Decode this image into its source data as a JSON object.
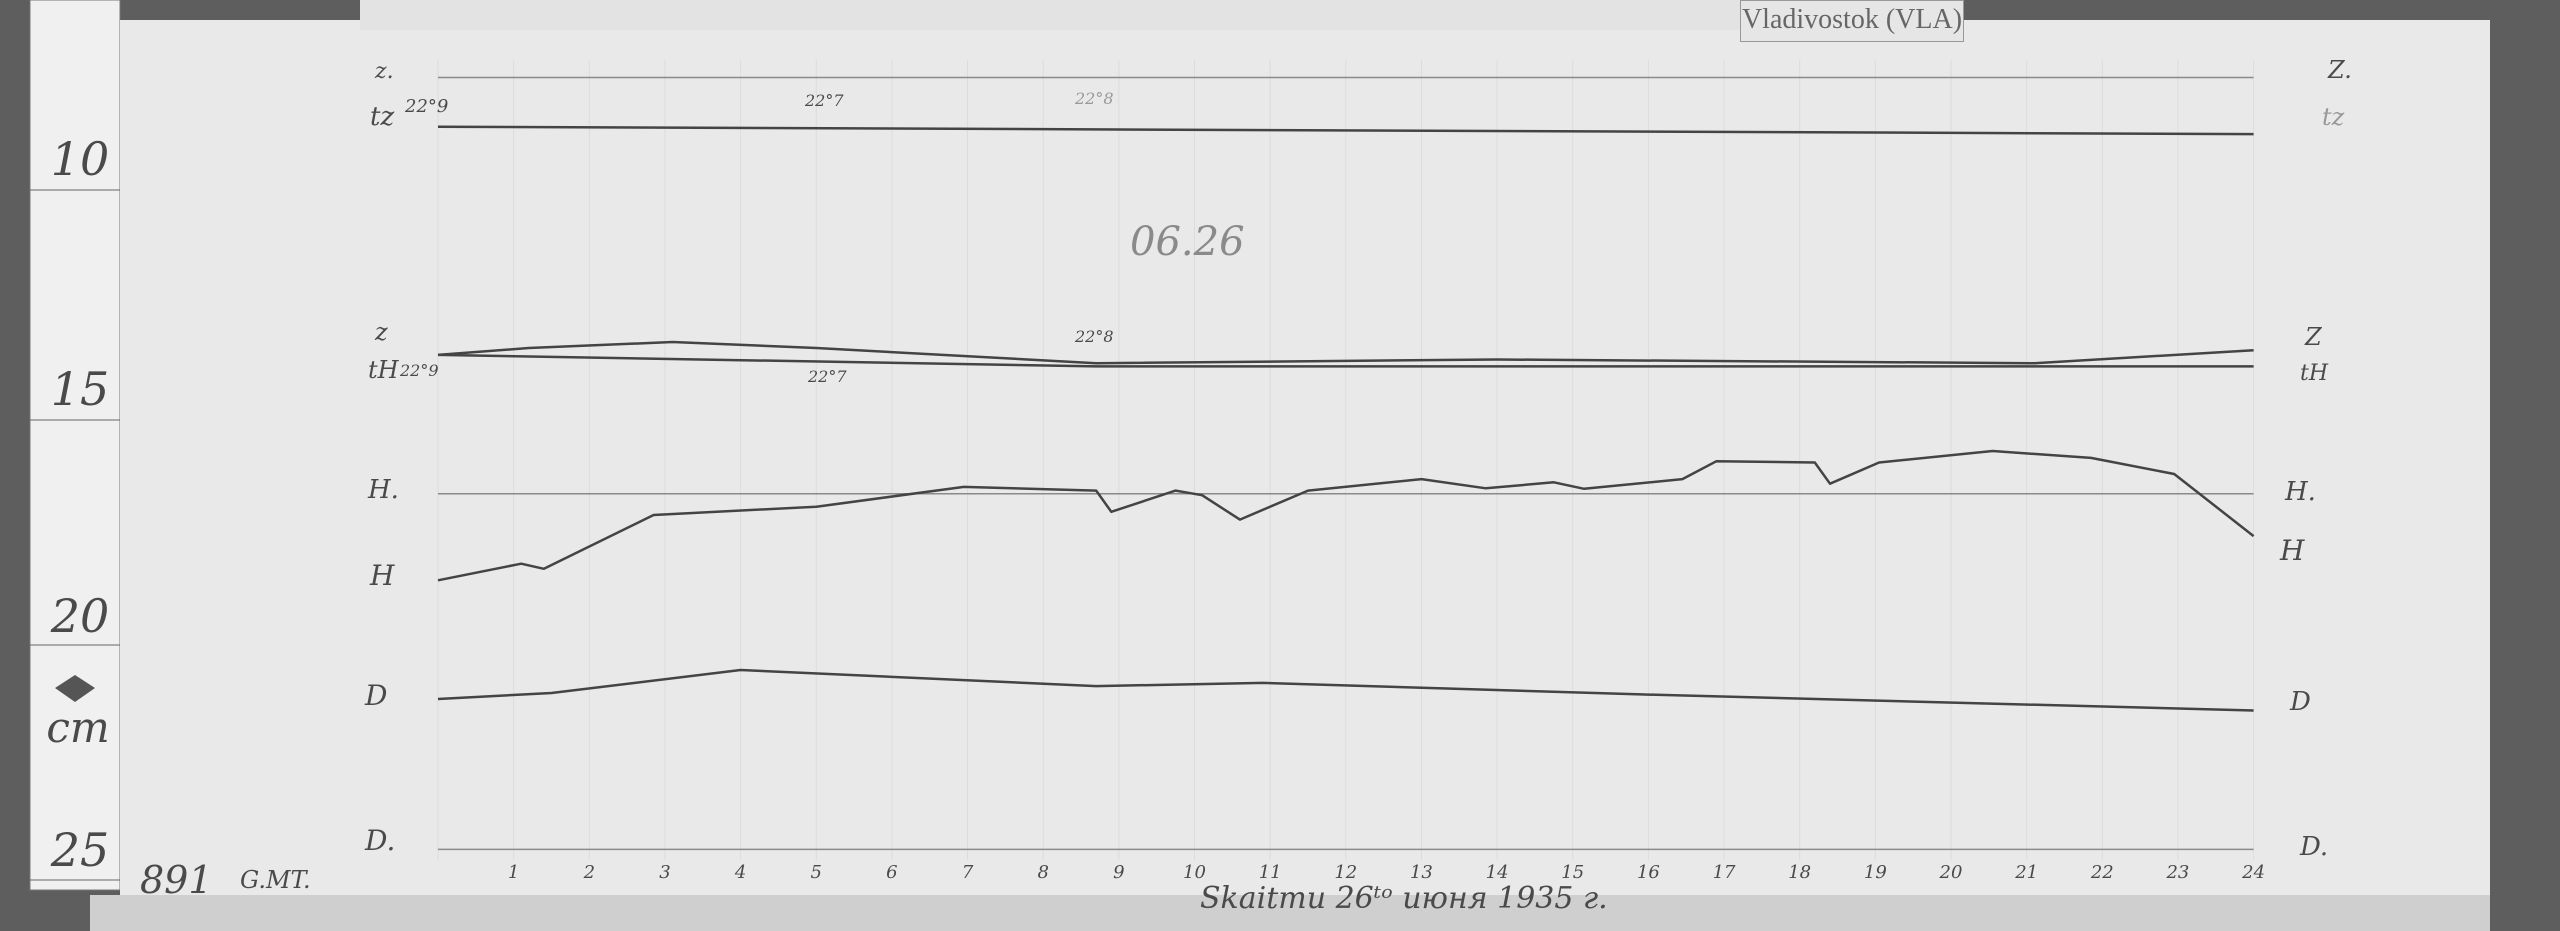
{
  "station_tag": "Vladivostok (VLA)",
  "ruler": {
    "labels": [
      "10",
      "15",
      "20",
      "25"
    ],
    "unit": "cm"
  },
  "sheet_number": "891",
  "time_reference": "G.MT.",
  "date_caption": "Skaitmu 26ᵗᵒ июня 1935 г.",
  "pencil_note": "06.26",
  "left_labels": {
    "z0": "z.",
    "tz": "tz",
    "tz_value": "22°9",
    "z": "z",
    "th": "tH",
    "th_value": "22°9",
    "h0": "H.",
    "h": "H",
    "d": "D",
    "d0": "D."
  },
  "right_labels": {
    "z0": "Z.",
    "tz": "tz",
    "z": "Z",
    "th": "tH",
    "h0": "H.",
    "h": "H",
    "d": "D",
    "d0": "D."
  },
  "annotations": {
    "tz_mid": "22°7",
    "tz_center": "22°8",
    "z_center": "22°8",
    "th_mid": "22°7"
  },
  "colors": {
    "paper": "#e9e9e9",
    "trace": "#444444",
    "background": "#5e5e5e"
  },
  "chart_data": {
    "type": "line",
    "title": "",
    "xlabel": "G.MT.",
    "ylabel": "cm",
    "x_ticks": [
      "1",
      "2",
      "3",
      "4",
      "5",
      "6",
      "7",
      "8",
      "9",
      "10",
      "11",
      "12",
      "13",
      "14",
      "15",
      "16",
      "17",
      "18",
      "19",
      "20",
      "21",
      "22",
      "23",
      "24"
    ],
    "xlim": [
      0,
      24
    ],
    "ylim": [
      7,
      25
    ],
    "grid": true,
    "series": [
      {
        "name": "Z.",
        "x": [
          0,
          24
        ],
        "y": [
          7.62,
          7.62
        ]
      },
      {
        "name": "tz",
        "x": [
          0,
          24
        ],
        "y": [
          8.69,
          8.85
        ]
      },
      {
        "name": "Z",
        "x": [
          0,
          1.2,
          3.1,
          5.0,
          8.7,
          14.0,
          21.1,
          24
        ],
        "y": [
          13.65,
          13.5,
          13.37,
          13.5,
          13.83,
          13.75,
          13.83,
          13.55
        ]
      },
      {
        "name": "tH",
        "x": [
          0,
          8.7,
          24
        ],
        "y": [
          13.65,
          13.9,
          13.9
        ]
      },
      {
        "name": "H.",
        "x": [
          0,
          24
        ],
        "y": [
          16.67,
          16.67
        ]
      },
      {
        "name": "H",
        "x": [
          0,
          1.1,
          1.4,
          2.85,
          5.0,
          6.95,
          8.7,
          8.9,
          9.75,
          10.1,
          10.6,
          11.5,
          13.0,
          13.85,
          14.75,
          15.15,
          16.45,
          16.9,
          18.2,
          18.4,
          19.05,
          20.55,
          21.85,
          22.95,
          24
        ],
        "y": [
          18.55,
          18.19,
          18.3,
          17.13,
          16.95,
          16.52,
          16.6,
          17.06,
          16.6,
          16.7,
          17.23,
          16.6,
          16.35,
          16.55,
          16.42,
          16.56,
          16.35,
          15.96,
          15.99,
          16.45,
          15.99,
          15.74,
          15.89,
          16.24,
          17.59
        ]
      },
      {
        "name": "D",
        "x": [
          0,
          1.5,
          4.0,
          8.7,
          10.9,
          15.9,
          24
        ],
        "y": [
          21.13,
          21.0,
          20.5,
          20.85,
          20.78,
          21.03,
          21.38
        ]
      },
      {
        "name": "D.",
        "x": [
          0,
          24
        ],
        "y": [
          24.4,
          24.4
        ]
      }
    ]
  }
}
